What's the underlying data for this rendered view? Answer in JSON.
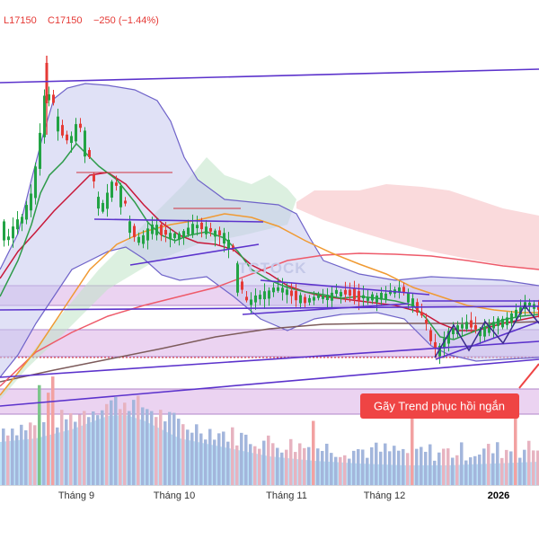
{
  "header": {
    "low_text": "L17150",
    "close_text": "C17150",
    "change_text": "−250 (−1.44%)",
    "color": "#e53935"
  },
  "callout": {
    "text": "Gãy Trend phục hồi ngắn",
    "bg_color": "#ef4444",
    "text_color": "#ffffff"
  },
  "watermark": "TCTOCK",
  "colors": {
    "up": "#22a344",
    "down": "#e53935",
    "bb_fill": "#c7c9ee",
    "bb_line": "#6f63c9",
    "ma_green": "#2e9b4a",
    "ma_red": "#c8193a",
    "ma_orange": "#f09a32",
    "ma_pink": "#ee5a6a",
    "ma_brown": "#7d5b5b",
    "trend_line": "#5c33cc",
    "zone_fill": "#e6c8ee",
    "volume_bar": "#a3b6dc",
    "volume_area": "#a9daf5"
  },
  "chart_data": {
    "type": "candlestick",
    "x_ticks": [
      {
        "label": "Tháng 9",
        "bold": false
      },
      {
        "label": "Tháng 10",
        "bold": false
      },
      {
        "label": "Tháng 11",
        "bold": false
      },
      {
        "label": "Tháng 12",
        "bold": false
      },
      {
        "label": "2026",
        "bold": true
      }
    ],
    "last_close": 17150,
    "last_low": 17150,
    "change": -250,
    "change_percent": -1.44
  }
}
